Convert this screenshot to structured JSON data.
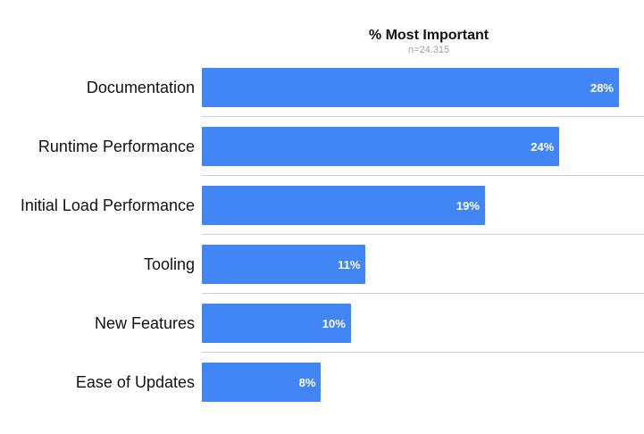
{
  "chart_data": {
    "type": "bar",
    "orientation": "horizontal",
    "title": "% Most Important",
    "subtitle": "n=24.315",
    "categories": [
      "Documentation",
      "Runtime Performance",
      "Initial Load Performance",
      "Tooling",
      "New Features",
      "Ease of Updates"
    ],
    "values": [
      28,
      24,
      19,
      11,
      10,
      8
    ],
    "value_labels": [
      "28%",
      "24%",
      "19%",
      "11%",
      "10%",
      "8%"
    ],
    "xlim": [
      0,
      28
    ],
    "grid": false,
    "bar_color": "#4285f4"
  }
}
